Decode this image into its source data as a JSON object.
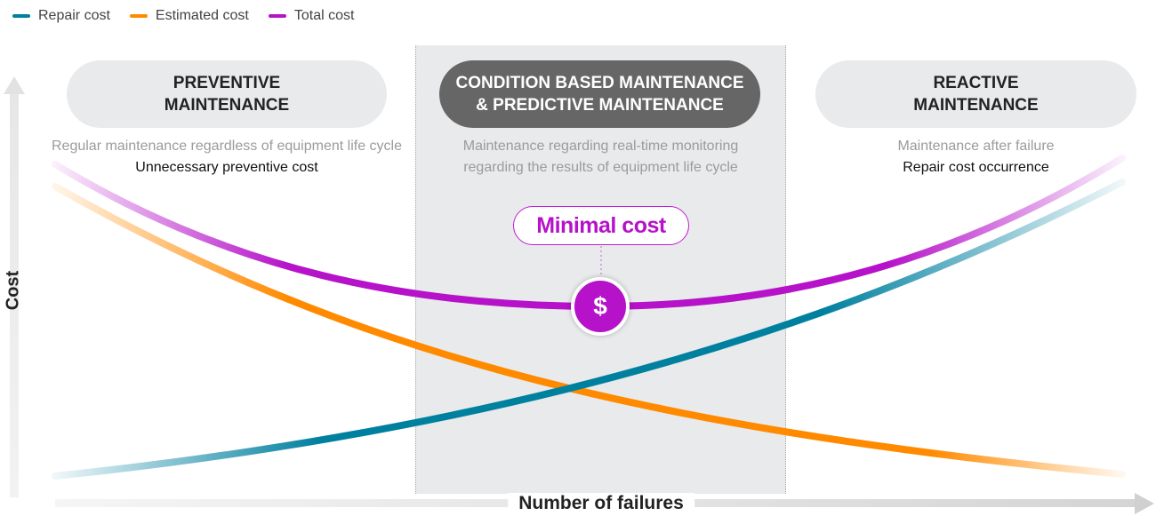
{
  "legend": [
    {
      "label": "Repair cost",
      "color": "#00809f"
    },
    {
      "label": "Estimated cost",
      "color": "#ff8a00"
    },
    {
      "label": "Total cost",
      "color": "#b512c9"
    }
  ],
  "zones": {
    "preventive": {
      "title_lines": [
        "PREVENTIVE",
        "MAINTENANCE"
      ],
      "desc_gray": "Regular maintenance regardless of equipment life cycle",
      "desc_dark": "Unnecessary preventive cost"
    },
    "condition": {
      "title_lines": [
        "CONDITION BASED MAINTENANCE",
        "& PREDICTIVE MAINTENANCE"
      ],
      "desc_gray_lines": [
        "Maintenance regarding real-time monitoring",
        "regarding the results of equipment life cycle"
      ]
    },
    "reactive": {
      "title_lines": [
        "REACTIVE",
        "MAINTENANCE"
      ],
      "desc_gray": "Maintenance after failure",
      "desc_dark": "Repair cost occurrence"
    }
  },
  "minimal_cost_label": "Minimal cost",
  "coin_symbol": "$",
  "axes": {
    "y_label": "Cost",
    "x_label": "Number of failures"
  },
  "chart_data": {
    "type": "line",
    "xlabel": "Number of failures",
    "ylabel": "Cost",
    "series": [
      {
        "name": "Repair cost",
        "color": "#00809f",
        "trend": "increasing"
      },
      {
        "name": "Estimated cost",
        "color": "#ff8a00",
        "trend": "decreasing"
      },
      {
        "name": "Total cost",
        "color": "#b512c9",
        "trend": "u-shaped, minimum in condition based maintenance zone"
      }
    ]
  }
}
